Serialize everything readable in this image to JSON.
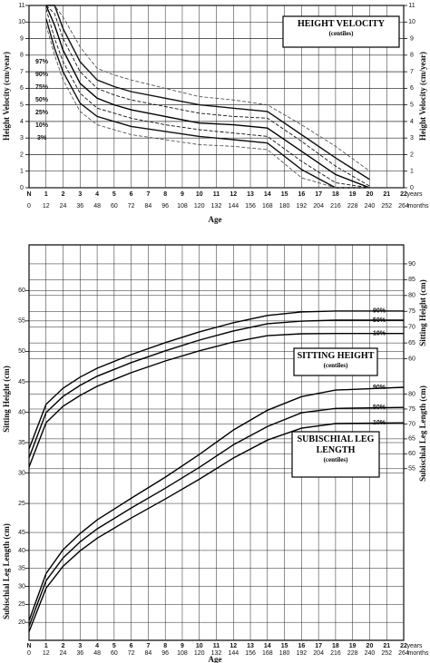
{
  "chart_data": [
    {
      "type": "line",
      "title": "HEIGHT VELOCITY",
      "subtitle": "(centiles)",
      "ylabel": "Height Velocity (cm/year)",
      "y2label": "Height Velocity (cm/year)",
      "xlabel": "Age",
      "x_unit": "years",
      "month_unit": "months",
      "xlim": [
        0,
        22
      ],
      "xticks": [
        {
          "value": 0,
          "label": "N"
        },
        1,
        2,
        3,
        4,
        5,
        6,
        7,
        8,
        9,
        10,
        11,
        12,
        13,
        14,
        15,
        16,
        17,
        18,
        19,
        20,
        21,
        22
      ],
      "month_ticks": [
        {
          "value": 0,
          "label": "0"
        },
        {
          "value": 1,
          "label": "12"
        },
        {
          "value": 2,
          "label": "24"
        },
        {
          "value": 3,
          "label": "36"
        },
        {
          "value": 4,
          "label": "48"
        },
        {
          "value": 5,
          "label": "60"
        },
        {
          "value": 6,
          "label": "72"
        },
        {
          "value": 7,
          "label": "84"
        },
        {
          "value": 8,
          "label": "96"
        },
        {
          "value": 9,
          "label": "108"
        },
        {
          "value": 10,
          "label": "120"
        },
        {
          "value": 11,
          "label": "132"
        },
        {
          "value": 12,
          "label": "144"
        },
        {
          "value": 13,
          "label": "156"
        },
        {
          "value": 14,
          "label": "168"
        },
        {
          "value": 15,
          "label": "180"
        },
        {
          "value": 16,
          "label": "192"
        },
        {
          "value": 17,
          "label": "204"
        },
        {
          "value": 18,
          "label": "216"
        },
        {
          "value": 19,
          "label": "228"
        },
        {
          "value": 20,
          "label": "240"
        },
        {
          "value": 21,
          "label": "252"
        },
        {
          "value": 22,
          "label": "264"
        }
      ],
      "ylim": [
        0,
        11
      ],
      "yticks": [
        0,
        1,
        2,
        3,
        4,
        5,
        6,
        7,
        8,
        9,
        10,
        11
      ],
      "y2lim": [
        0,
        11
      ],
      "y2ticks": [
        0,
        1,
        2,
        3,
        4,
        5,
        6,
        7,
        8,
        9,
        10,
        11
      ],
      "grid": true,
      "x": [
        1,
        1.5,
        2,
        3,
        4,
        5,
        6,
        8,
        10,
        12,
        14,
        16,
        18,
        20
      ],
      "series": [
        {
          "name": "97%",
          "color": "#555555",
          "style": "dashed",
          "values": [
            11,
            11,
            10.3,
            8.5,
            7.2,
            6.8,
            6.5,
            6.0,
            5.5,
            5.3,
            5.0,
            3.8,
            2.5,
            1.0
          ]
        },
        {
          "name": "90%",
          "color": "#111111",
          "style": "solid",
          "values": [
            11,
            11,
            9.6,
            7.6,
            6.5,
            6.1,
            5.8,
            5.4,
            5.0,
            4.8,
            4.6,
            3.2,
            1.8,
            0.5
          ]
        },
        {
          "name": "75%",
          "color": "#111111",
          "style": "dashed",
          "values": [
            11,
            10.5,
            9.0,
            7.0,
            6.0,
            5.6,
            5.3,
            4.9,
            4.5,
            4.3,
            4.2,
            2.8,
            1.3,
            0.1
          ]
        },
        {
          "name": "50%",
          "color": "#000000",
          "style": "solid",
          "values": [
            11,
            9.8,
            8.3,
            6.3,
            5.4,
            5.0,
            4.7,
            4.3,
            3.9,
            3.8,
            3.6,
            2.2,
            0.8,
            0
          ]
        },
        {
          "name": "25%",
          "color": "#111111",
          "style": "dashed",
          "values": [
            10.8,
            9.0,
            7.6,
            5.7,
            4.8,
            4.5,
            4.2,
            3.8,
            3.5,
            3.3,
            3.1,
            1.6,
            0.3,
            0
          ]
        },
        {
          "name": "10%",
          "color": "#111111",
          "style": "solid",
          "values": [
            10.2,
            8.4,
            7.0,
            5.1,
            4.3,
            4.0,
            3.7,
            3.4,
            3.1,
            2.9,
            2.7,
            1.1,
            0,
            0
          ]
        },
        {
          "name": "3%",
          "color": "#555555",
          "style": "dashed",
          "values": [
            9.8,
            8.0,
            6.5,
            4.6,
            3.8,
            3.5,
            3.2,
            2.9,
            2.6,
            2.5,
            2.3,
            0.6,
            0,
            0
          ]
        }
      ]
    },
    {
      "type": "line",
      "title": "SITTING HEIGHT",
      "subtitle": "(centiles)",
      "ylabel": "Sitting Height (cm)",
      "y2label": "Sitting Height (cm)",
      "xlabel": "Age",
      "x_unit": "years",
      "month_unit": "months",
      "xlim": [
        0,
        22
      ],
      "xticks": [
        {
          "value": 0,
          "label": "N"
        },
        1,
        2,
        3,
        4,
        5,
        6,
        7,
        8,
        9,
        10,
        11,
        12,
        13,
        14,
        15,
        16,
        17,
        18,
        19,
        20,
        21,
        22
      ],
      "month_ticks": [
        {
          "value": 0,
          "label": "0"
        },
        {
          "value": 1,
          "label": "12"
        },
        {
          "value": 2,
          "label": "24"
        },
        {
          "value": 3,
          "label": "36"
        },
        {
          "value": 4,
          "label": "48"
        },
        {
          "value": 5,
          "label": "60"
        },
        {
          "value": 6,
          "label": "72"
        },
        {
          "value": 7,
          "label": "84"
        },
        {
          "value": 8,
          "label": "96"
        },
        {
          "value": 9,
          "label": "108"
        },
        {
          "value": 10,
          "label": "120"
        },
        {
          "value": 11,
          "label": "132"
        },
        {
          "value": 12,
          "label": "144"
        },
        {
          "value": 13,
          "label": "156"
        },
        {
          "value": 14,
          "label": "168"
        },
        {
          "value": 15,
          "label": "180"
        },
        {
          "value": 16,
          "label": "192"
        },
        {
          "value": 17,
          "label": "204"
        },
        {
          "value": 18,
          "label": "216"
        },
        {
          "value": 19,
          "label": "228"
        },
        {
          "value": 20,
          "label": "240"
        },
        {
          "value": 21,
          "label": "252"
        },
        {
          "value": 22,
          "label": "264"
        }
      ],
      "ylim": [
        2.5,
        67.5
      ],
      "yticks": [
        25,
        30,
        35,
        40,
        45,
        50,
        55,
        60
      ],
      "y2lim": [
        -29,
        96
      ],
      "y2ticks": [
        60,
        65,
        70,
        75,
        80,
        85,
        90
      ],
      "grid": true,
      "x": [
        0,
        1,
        2,
        3,
        4,
        6,
        8,
        10,
        12,
        14,
        16,
        18,
        22
      ],
      "series": [
        {
          "name": "90%",
          "color": "#000000",
          "style": "solid",
          "axis": "y2",
          "values": [
            31.5,
            45.6,
            50.7,
            54.2,
            57.0,
            61.3,
            65.1,
            68.5,
            71.4,
            73.7,
            74.8,
            75.1,
            75.1
          ]
        },
        {
          "name": "50%",
          "color": "#000000",
          "style": "solid",
          "axis": "y2",
          "values": [
            28.7,
            43.0,
            48.1,
            51.6,
            54.5,
            58.8,
            62.5,
            65.9,
            68.8,
            71.1,
            71.9,
            72.2,
            72.2
          ]
        },
        {
          "name": "10%",
          "color": "#000000",
          "style": "solid",
          "axis": "y2",
          "values": [
            25.8,
            39.8,
            45.0,
            48.4,
            51.3,
            55.6,
            59.3,
            62.5,
            65.3,
            67.3,
            67.9,
            68.0,
            68.0
          ]
        }
      ]
    },
    {
      "type": "line",
      "title": "SUBISCHIAL LEG LENGTH",
      "subtitle": "(centiles)",
      "ylabel": "Subischial Leg Length (cm)",
      "y2label": "Subischial Leg Length (cm)",
      "xlim": [
        0,
        22
      ],
      "ylim": [
        15,
        125
      ],
      "yticks": [
        20,
        25,
        30,
        35,
        40,
        45
      ],
      "y2lim": [
        -2.5,
        130
      ],
      "y2ticks": [
        55,
        60,
        65,
        70,
        75,
        80
      ],
      "grid": true,
      "x": [
        0,
        1,
        2,
        3,
        4,
        6,
        8,
        10,
        12,
        14,
        16,
        18,
        22
      ],
      "series": [
        {
          "name": "90%",
          "color": "#000000",
          "style": "solid",
          "axis": "y",
          "values": [
            20.5,
            33.6,
            40.2,
            44.7,
            48.5,
            54.5,
            60.4,
            66.7,
            73.5,
            79.0,
            82.8,
            84.6,
            85.4
          ]
        },
        {
          "name": "50%",
          "color": "#000000",
          "style": "solid",
          "axis": "y",
          "values": [
            18.9,
            31.6,
            37.9,
            42.4,
            46.0,
            51.8,
            57.3,
            63.1,
            69.4,
            74.5,
            78.3,
            79.5,
            79.8
          ]
        },
        {
          "name": "10%",
          "color": "#000000",
          "style": "solid",
          "axis": "y",
          "values": [
            17.4,
            29.5,
            35.6,
            39.9,
            43.4,
            49.0,
            54.3,
            59.8,
            65.7,
            70.7,
            74.0,
            75.3,
            75.5
          ]
        }
      ]
    }
  ]
}
